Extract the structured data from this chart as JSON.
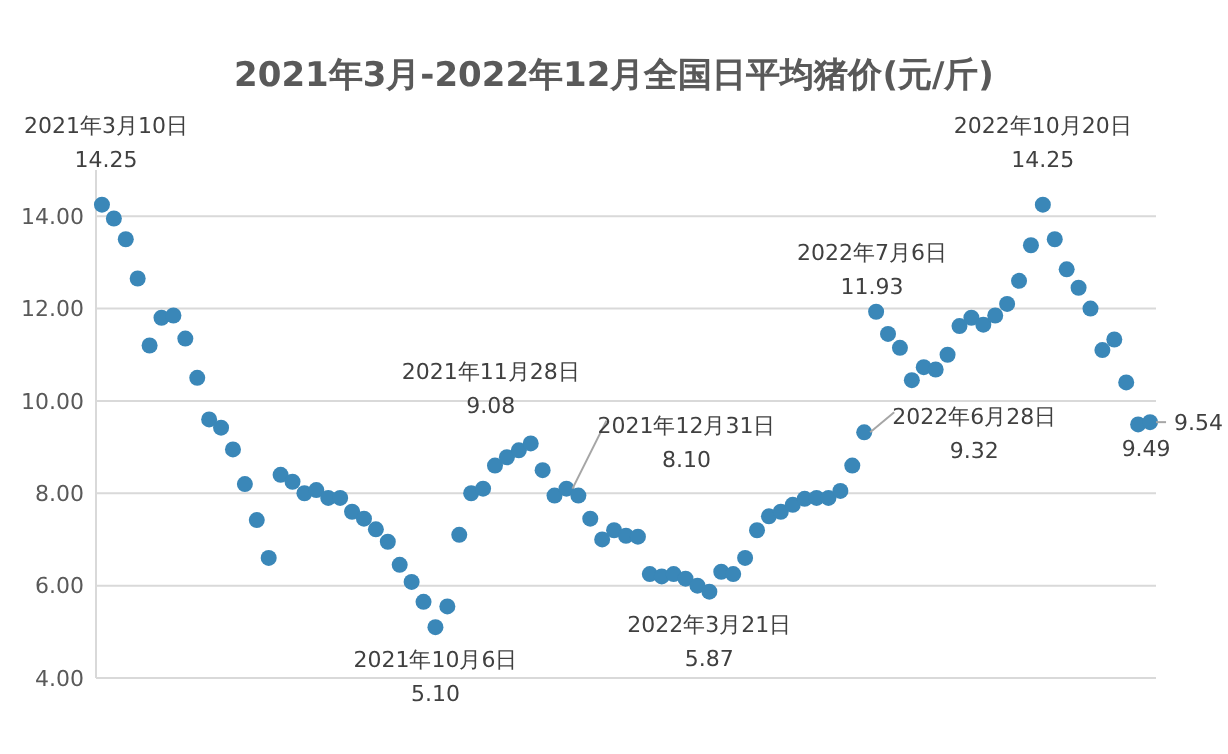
{
  "chart_data": {
    "type": "scatter",
    "title": "2021年3月-2022年12月全国日平均猪价(元/斤)",
    "categories": [
      null,
      null,
      null,
      null,
      null,
      null,
      null,
      null,
      null,
      null,
      null,
      null,
      null,
      null,
      null,
      null,
      null,
      null,
      null,
      null,
      null,
      null,
      null,
      null,
      null,
      null,
      null,
      null,
      null,
      null,
      null,
      null,
      null,
      null,
      null,
      null,
      null,
      null,
      null,
      null,
      null,
      null,
      null,
      null,
      null,
      null,
      null,
      null,
      null,
      null,
      null,
      null,
      null,
      null,
      null,
      null,
      null,
      null,
      null,
      null,
      null,
      null,
      null,
      null,
      null,
      null,
      null,
      null,
      null,
      null,
      null,
      null,
      null,
      null,
      null,
      null,
      null,
      null,
      null,
      null,
      null,
      null,
      null,
      null,
      null,
      null,
      null,
      null,
      null
    ],
    "series": [
      {
        "color": "#3a87b8",
        "values": [
          14.25,
          13.95,
          13.5,
          12.65,
          11.2,
          11.8,
          11.85,
          11.35,
          10.5,
          9.6,
          9.42,
          8.95,
          8.2,
          7.42,
          6.6,
          8.4,
          8.25,
          8.0,
          8.07,
          7.9,
          7.9,
          7.6,
          7.45,
          7.22,
          6.95,
          6.45,
          6.08,
          5.65,
          5.1,
          5.55,
          7.1,
          8.0,
          8.1,
          8.6,
          8.78,
          8.93,
          9.08,
          8.5,
          7.95,
          8.1,
          7.95,
          7.45,
          7.0,
          7.2,
          7.08,
          7.06,
          6.25,
          6.2,
          6.25,
          6.15,
          6.0,
          5.87,
          6.3,
          6.25,
          6.6,
          7.2,
          7.5,
          7.6,
          7.75,
          7.88,
          7.9,
          7.9,
          8.05,
          8.6,
          9.32,
          11.93,
          11.45,
          11.15,
          10.45,
          10.73,
          10.68,
          11.0,
          11.62,
          11.8,
          11.65,
          11.85,
          12.1,
          12.6,
          13.37,
          14.25,
          13.5,
          12.85,
          12.45,
          12.0,
          11.1,
          11.33,
          10.4,
          9.49,
          9.54
        ],
        "value_labels": [
          "2021年3月10日\n14.25",
          null,
          null,
          null,
          null,
          null,
          null,
          null,
          null,
          null,
          null,
          null,
          null,
          null,
          null,
          null,
          null,
          null,
          null,
          null,
          null,
          null,
          null,
          null,
          null,
          null,
          null,
          null,
          "2021年10月6日\n5.10",
          null,
          null,
          null,
          null,
          null,
          null,
          null,
          "2021年11月28日\n9.08",
          null,
          null,
          "2021年12月31日\n8.10",
          null,
          null,
          null,
          null,
          null,
          null,
          null,
          null,
          null,
          null,
          null,
          "2022年3月21日\n5.87",
          null,
          null,
          null,
          null,
          null,
          null,
          null,
          null,
          null,
          null,
          null,
          null,
          "2022年6月28日\n9.32",
          "2022年7月6日\n11.93",
          null,
          null,
          null,
          null,
          null,
          null,
          null,
          null,
          null,
          null,
          null,
          null,
          null,
          "2022年10月20日\n14.25",
          null,
          null,
          null,
          null,
          null,
          null,
          null,
          "9.49",
          "9.54"
        ]
      }
    ],
    "ylim": [
      4,
      15
    ],
    "yticks": [
      {
        "value": 4,
        "label": "4.00"
      },
      {
        "value": 6,
        "label": "6.00"
      },
      {
        "value": 8,
        "label": "8.00"
      },
      {
        "value": 10,
        "label": "10.00"
      },
      {
        "value": 12,
        "label": "12.00"
      },
      {
        "value": 14,
        "label": "14.00"
      }
    ],
    "tick_labels": "y",
    "grid": "y",
    "marker": "circle"
  }
}
